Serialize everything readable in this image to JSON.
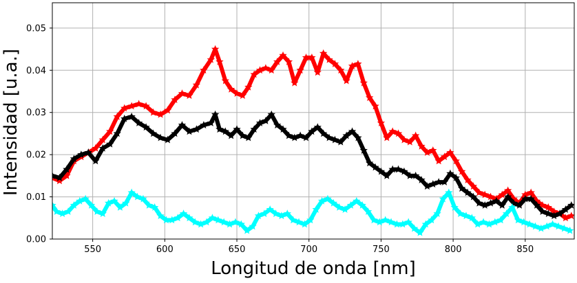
{
  "chart_data": {
    "type": "line",
    "title": "",
    "xlabel": "Longitud de onda [nm]",
    "ylabel": "Intensidad [u.a.]",
    "xlim": [
      522,
      884
    ],
    "ylim": [
      0,
      0.056
    ],
    "xticks": [
      550,
      600,
      650,
      700,
      750,
      800,
      850
    ],
    "yticks": [
      0.0,
      0.01,
      0.02,
      0.03,
      0.04,
      0.05
    ],
    "ytick_labels": [
      "0.00",
      "0.01",
      "0.02",
      "0.03",
      "0.04",
      "0.05"
    ],
    "grid": true,
    "legend": "none",
    "marker": "star",
    "series": [
      {
        "color": "#ff0000",
        "points": [
          [
            522,
            0.0145
          ],
          [
            527,
            0.0138
          ],
          [
            532,
            0.015
          ],
          [
            537,
            0.0185
          ],
          [
            542,
            0.0195
          ],
          [
            547,
            0.0205
          ],
          [
            552,
            0.0215
          ],
          [
            557,
            0.0235
          ],
          [
            562,
            0.0255
          ],
          [
            567,
            0.029
          ],
          [
            572,
            0.031
          ],
          [
            577,
            0.0315
          ],
          [
            582,
            0.032
          ],
          [
            587,
            0.0315
          ],
          [
            592,
            0.03
          ],
          [
            597,
            0.0295
          ],
          [
            602,
            0.0305
          ],
          [
            607,
            0.033
          ],
          [
            612,
            0.0345
          ],
          [
            617,
            0.034
          ],
          [
            622,
            0.0365
          ],
          [
            627,
            0.04
          ],
          [
            632,
            0.0425
          ],
          [
            635,
            0.045
          ],
          [
            638,
            0.042
          ],
          [
            642,
            0.0375
          ],
          [
            646,
            0.0355
          ],
          [
            650,
            0.0345
          ],
          [
            654,
            0.034
          ],
          [
            658,
            0.036
          ],
          [
            662,
            0.039
          ],
          [
            666,
            0.04
          ],
          [
            670,
            0.0405
          ],
          [
            674,
            0.04
          ],
          [
            678,
            0.042
          ],
          [
            682,
            0.0435
          ],
          [
            686,
            0.042
          ],
          [
            690,
            0.037
          ],
          [
            694,
            0.04
          ],
          [
            698,
            0.043
          ],
          [
            702,
            0.043
          ],
          [
            706,
            0.0395
          ],
          [
            710,
            0.044
          ],
          [
            714,
            0.0425
          ],
          [
            718,
            0.0415
          ],
          [
            722,
            0.04
          ],
          [
            726,
            0.0375
          ],
          [
            730,
            0.041
          ],
          [
            734,
            0.0415
          ],
          [
            738,
            0.037
          ],
          [
            742,
            0.0335
          ],
          [
            746,
            0.0315
          ],
          [
            750,
            0.0275
          ],
          [
            754,
            0.024
          ],
          [
            758,
            0.0255
          ],
          [
            762,
            0.025
          ],
          [
            766,
            0.0235
          ],
          [
            770,
            0.023
          ],
          [
            774,
            0.0245
          ],
          [
            778,
            0.022
          ],
          [
            782,
            0.0205
          ],
          [
            786,
            0.021
          ],
          [
            790,
            0.0185
          ],
          [
            794,
            0.0195
          ],
          [
            798,
            0.0205
          ],
          [
            802,
            0.0185
          ],
          [
            806,
            0.016
          ],
          [
            810,
            0.014
          ],
          [
            814,
            0.0125
          ],
          [
            818,
            0.011
          ],
          [
            822,
            0.0105
          ],
          [
            826,
            0.01
          ],
          [
            830,
            0.0095
          ],
          [
            834,
            0.0105
          ],
          [
            838,
            0.0115
          ],
          [
            842,
            0.0095
          ],
          [
            846,
            0.0085
          ],
          [
            850,
            0.0105
          ],
          [
            854,
            0.011
          ],
          [
            858,
            0.009
          ],
          [
            862,
            0.008
          ],
          [
            866,
            0.0075
          ],
          [
            870,
            0.0065
          ],
          [
            874,
            0.006
          ],
          [
            878,
            0.005
          ],
          [
            882,
            0.0055
          ]
        ]
      },
      {
        "color": "#000000",
        "points": [
          [
            522,
            0.015
          ],
          [
            527,
            0.0145
          ],
          [
            532,
            0.0165
          ],
          [
            537,
            0.019
          ],
          [
            542,
            0.02
          ],
          [
            547,
            0.0205
          ],
          [
            552,
            0.0185
          ],
          [
            557,
            0.0215
          ],
          [
            562,
            0.0225
          ],
          [
            567,
            0.025
          ],
          [
            572,
            0.0285
          ],
          [
            577,
            0.029
          ],
          [
            582,
            0.0275
          ],
          [
            587,
            0.0265
          ],
          [
            592,
            0.025
          ],
          [
            597,
            0.024
          ],
          [
            602,
            0.0235
          ],
          [
            607,
            0.025
          ],
          [
            612,
            0.027
          ],
          [
            617,
            0.0255
          ],
          [
            622,
            0.026
          ],
          [
            627,
            0.027
          ],
          [
            632,
            0.0275
          ],
          [
            635,
            0.0295
          ],
          [
            638,
            0.026
          ],
          [
            642,
            0.0255
          ],
          [
            646,
            0.0245
          ],
          [
            650,
            0.026
          ],
          [
            654,
            0.0245
          ],
          [
            658,
            0.024
          ],
          [
            662,
            0.026
          ],
          [
            666,
            0.0275
          ],
          [
            670,
            0.028
          ],
          [
            674,
            0.0295
          ],
          [
            678,
            0.027
          ],
          [
            682,
            0.026
          ],
          [
            686,
            0.0245
          ],
          [
            690,
            0.024
          ],
          [
            694,
            0.0245
          ],
          [
            698,
            0.024
          ],
          [
            702,
            0.0255
          ],
          [
            706,
            0.0265
          ],
          [
            710,
            0.025
          ],
          [
            714,
            0.024
          ],
          [
            718,
            0.0235
          ],
          [
            722,
            0.023
          ],
          [
            726,
            0.0245
          ],
          [
            730,
            0.0255
          ],
          [
            734,
            0.024
          ],
          [
            738,
            0.021
          ],
          [
            742,
            0.018
          ],
          [
            746,
            0.017
          ],
          [
            750,
            0.016
          ],
          [
            754,
            0.015
          ],
          [
            758,
            0.0165
          ],
          [
            762,
            0.0165
          ],
          [
            766,
            0.016
          ],
          [
            770,
            0.015
          ],
          [
            774,
            0.015
          ],
          [
            778,
            0.014
          ],
          [
            782,
            0.0125
          ],
          [
            786,
            0.013
          ],
          [
            790,
            0.0135
          ],
          [
            794,
            0.0135
          ],
          [
            798,
            0.0155
          ],
          [
            802,
            0.0145
          ],
          [
            806,
            0.012
          ],
          [
            810,
            0.011
          ],
          [
            814,
            0.01
          ],
          [
            818,
            0.0085
          ],
          [
            822,
            0.008
          ],
          [
            826,
            0.0085
          ],
          [
            830,
            0.009
          ],
          [
            834,
            0.008
          ],
          [
            838,
            0.01
          ],
          [
            842,
            0.0085
          ],
          [
            846,
            0.008
          ],
          [
            850,
            0.0095
          ],
          [
            854,
            0.0095
          ],
          [
            858,
            0.008
          ],
          [
            862,
            0.0065
          ],
          [
            866,
            0.006
          ],
          [
            870,
            0.0055
          ],
          [
            874,
            0.006
          ],
          [
            878,
            0.007
          ],
          [
            882,
            0.008
          ]
        ]
      },
      {
        "color": "#00ffff",
        "points": [
          [
            522,
            0.008
          ],
          [
            525,
            0.0065
          ],
          [
            529,
            0.006
          ],
          [
            533,
            0.0065
          ],
          [
            537,
            0.008
          ],
          [
            541,
            0.009
          ],
          [
            545,
            0.0095
          ],
          [
            549,
            0.008
          ],
          [
            553,
            0.0065
          ],
          [
            557,
            0.006
          ],
          [
            561,
            0.0085
          ],
          [
            565,
            0.009
          ],
          [
            569,
            0.0075
          ],
          [
            573,
            0.0085
          ],
          [
            577,
            0.011
          ],
          [
            581,
            0.01
          ],
          [
            585,
            0.0095
          ],
          [
            589,
            0.008
          ],
          [
            593,
            0.0075
          ],
          [
            597,
            0.0055
          ],
          [
            601,
            0.0045
          ],
          [
            605,
            0.0045
          ],
          [
            609,
            0.005
          ],
          [
            613,
            0.006
          ],
          [
            617,
            0.005
          ],
          [
            621,
            0.004
          ],
          [
            625,
            0.0035
          ],
          [
            629,
            0.004
          ],
          [
            633,
            0.005
          ],
          [
            637,
            0.0045
          ],
          [
            641,
            0.004
          ],
          [
            645,
            0.0035
          ],
          [
            649,
            0.004
          ],
          [
            653,
            0.0035
          ],
          [
            657,
            0.002
          ],
          [
            661,
            0.003
          ],
          [
            665,
            0.0055
          ],
          [
            669,
            0.006
          ],
          [
            673,
            0.007
          ],
          [
            677,
            0.006
          ],
          [
            681,
            0.0055
          ],
          [
            685,
            0.006
          ],
          [
            689,
            0.0045
          ],
          [
            693,
            0.004
          ],
          [
            697,
            0.0035
          ],
          [
            701,
            0.0045
          ],
          [
            705,
            0.007
          ],
          [
            709,
            0.009
          ],
          [
            713,
            0.0095
          ],
          [
            717,
            0.0085
          ],
          [
            721,
            0.0075
          ],
          [
            725,
            0.007
          ],
          [
            729,
            0.008
          ],
          [
            733,
            0.009
          ],
          [
            737,
            0.008
          ],
          [
            741,
            0.0065
          ],
          [
            745,
            0.0045
          ],
          [
            749,
            0.004
          ],
          [
            753,
            0.0045
          ],
          [
            757,
            0.004
          ],
          [
            761,
            0.0035
          ],
          [
            765,
            0.0035
          ],
          [
            769,
            0.004
          ],
          [
            773,
            0.0025
          ],
          [
            777,
            0.0015
          ],
          [
            781,
            0.0035
          ],
          [
            785,
            0.0045
          ],
          [
            789,
            0.006
          ],
          [
            793,
            0.0095
          ],
          [
            797,
            0.011
          ],
          [
            801,
            0.0075
          ],
          [
            805,
            0.006
          ],
          [
            809,
            0.0055
          ],
          [
            813,
            0.005
          ],
          [
            817,
            0.0035
          ],
          [
            821,
            0.004
          ],
          [
            825,
            0.0035
          ],
          [
            829,
            0.004
          ],
          [
            833,
            0.0045
          ],
          [
            837,
            0.006
          ],
          [
            841,
            0.0075
          ],
          [
            845,
            0.0045
          ],
          [
            849,
            0.004
          ],
          [
            853,
            0.0035
          ],
          [
            857,
            0.003
          ],
          [
            861,
            0.0025
          ],
          [
            865,
            0.003
          ],
          [
            869,
            0.0035
          ],
          [
            873,
            0.003
          ],
          [
            877,
            0.0025
          ],
          [
            881,
            0.002
          ]
        ]
      }
    ]
  }
}
